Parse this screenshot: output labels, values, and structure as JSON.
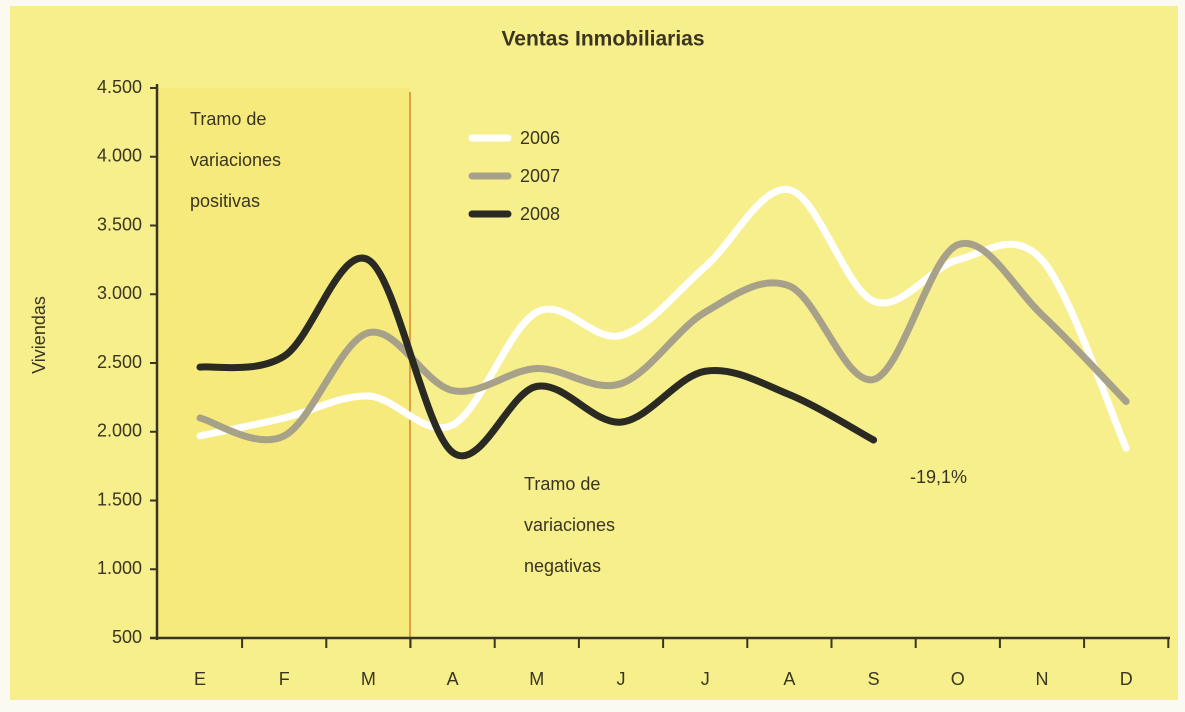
{
  "chart_data": {
    "type": "line",
    "title": "Ventas Inmobiliarias",
    "y_label": "Viviendas",
    "categories": [
      "E",
      "F",
      "M",
      "A",
      "M",
      "J",
      "J",
      "A",
      "S",
      "O",
      "N",
      "D"
    ],
    "series": [
      {
        "name": "2006",
        "color": "#ffffff",
        "values": [
          1970,
          2100,
          2260,
          2050,
          2870,
          2700,
          3200,
          3760,
          2950,
          3250,
          3250,
          1880
        ]
      },
      {
        "name": "2007",
        "color": "#a8a18a",
        "values": [
          2100,
          1970,
          2720,
          2300,
          2460,
          2350,
          2870,
          3060,
          2380,
          3360,
          2850,
          2220
        ]
      },
      {
        "name": "2008",
        "color": "#2b2a22",
        "values": [
          2470,
          2550,
          3250,
          1850,
          2330,
          2070,
          2440,
          2270,
          1940,
          null,
          null,
          null
        ]
      }
    ],
    "ylim": [
      500,
      4500
    ],
    "yticks": [
      {
        "value": 500,
        "label": "500"
      },
      {
        "value": 1000,
        "label": "1.000"
      },
      {
        "value": 1500,
        "label": "1.500"
      },
      {
        "value": 2000,
        "label": "2.000"
      },
      {
        "value": 2500,
        "label": "2.500"
      },
      {
        "value": 3000,
        "label": "3.000"
      },
      {
        "value": 3500,
        "label": "3.500"
      },
      {
        "value": 4000,
        "label": "4.000"
      },
      {
        "value": 4500,
        "label": "4.500"
      }
    ],
    "annotations": [
      {
        "lines": [
          "Tramo de",
          "variaciones",
          "positivas"
        ]
      },
      {
        "lines": [
          "Tramo de",
          "variaciones",
          "negativas"
        ]
      },
      {
        "lines": [
          "-19,1%"
        ]
      }
    ]
  }
}
